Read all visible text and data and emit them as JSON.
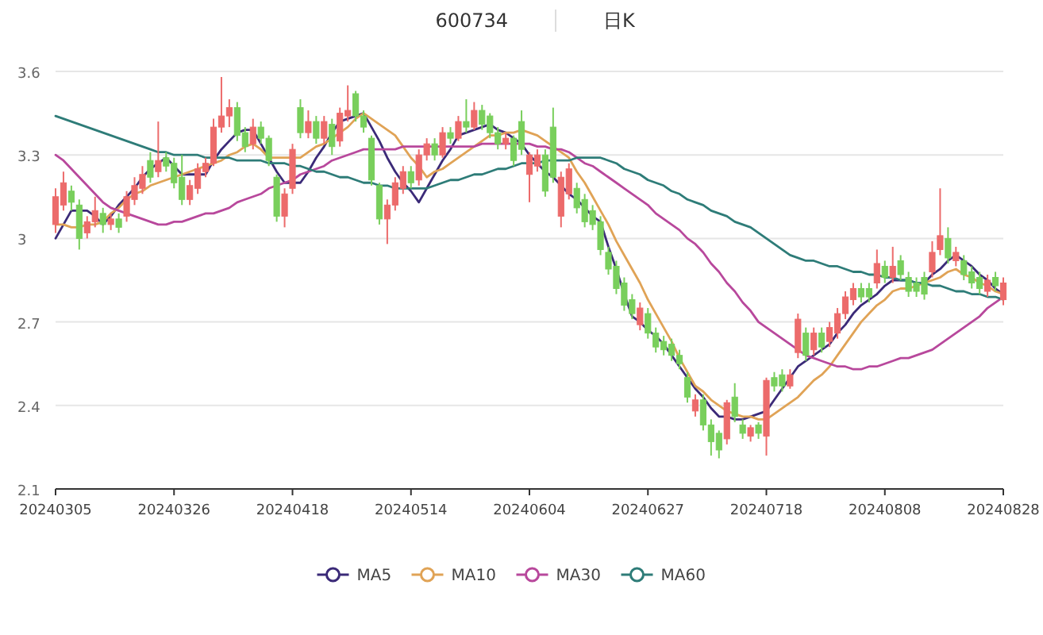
{
  "chart_data": {
    "type": "candlestick",
    "title": "600734",
    "subtitle": "日K",
    "categories": [
      "20240305",
      null,
      null,
      null,
      null,
      null,
      null,
      null,
      null,
      null,
      null,
      null,
      null,
      null,
      null,
      "20240326",
      null,
      null,
      null,
      null,
      null,
      null,
      null,
      null,
      null,
      null,
      null,
      null,
      null,
      null,
      "20240418",
      null,
      null,
      null,
      null,
      null,
      null,
      null,
      null,
      null,
      null,
      null,
      null,
      null,
      null,
      "20240514",
      null,
      null,
      null,
      null,
      null,
      null,
      null,
      null,
      null,
      null,
      null,
      null,
      null,
      null,
      "20240604",
      null,
      null,
      null,
      null,
      null,
      null,
      null,
      null,
      null,
      null,
      null,
      null,
      null,
      null,
      "20240627",
      null,
      null,
      null,
      null,
      null,
      null,
      null,
      null,
      null,
      null,
      null,
      null,
      null,
      null,
      "20240718",
      null,
      null,
      null,
      null,
      null,
      null,
      null,
      null,
      null,
      null,
      null,
      null,
      null,
      null,
      "20240808",
      null,
      null,
      null,
      null,
      null,
      null,
      null,
      null,
      null,
      null,
      null,
      null,
      null,
      null,
      "20240828"
    ],
    "ohlc": [
      [
        3.05,
        3.18,
        3.02,
        3.15
      ],
      [
        3.12,
        3.24,
        3.1,
        3.2
      ],
      [
        3.17,
        3.19,
        3.1,
        3.13
      ],
      [
        3.12,
        3.14,
        2.96,
        3.0
      ],
      [
        3.02,
        3.08,
        3.0,
        3.06
      ],
      [
        3.06,
        3.15,
        3.04,
        3.1
      ],
      [
        3.09,
        3.11,
        3.02,
        3.05
      ],
      [
        3.05,
        3.09,
        3.03,
        3.07
      ],
      [
        3.07,
        3.09,
        3.02,
        3.04
      ],
      [
        3.08,
        3.17,
        3.06,
        3.15
      ],
      [
        3.14,
        3.22,
        3.12,
        3.19
      ],
      [
        3.18,
        3.26,
        3.16,
        3.23
      ],
      [
        3.28,
        3.31,
        3.2,
        3.22
      ],
      [
        3.24,
        3.42,
        3.22,
        3.28
      ],
      [
        3.29,
        3.31,
        3.24,
        3.26
      ],
      [
        3.27,
        3.29,
        3.18,
        3.2
      ],
      [
        3.22,
        3.3,
        3.12,
        3.14
      ],
      [
        3.14,
        3.21,
        3.12,
        3.19
      ],
      [
        3.18,
        3.27,
        3.16,
        3.25
      ],
      [
        3.24,
        3.29,
        3.22,
        3.27
      ],
      [
        3.27,
        3.43,
        3.26,
        3.4
      ],
      [
        3.4,
        3.58,
        3.38,
        3.44
      ],
      [
        3.44,
        3.5,
        3.4,
        3.47
      ],
      [
        3.47,
        3.49,
        3.35,
        3.37
      ],
      [
        3.38,
        3.4,
        3.31,
        3.33
      ],
      [
        3.34,
        3.43,
        3.32,
        3.4
      ],
      [
        3.4,
        3.42,
        3.34,
        3.36
      ],
      [
        3.36,
        3.37,
        3.26,
        3.28
      ],
      [
        3.22,
        3.23,
        3.06,
        3.08
      ],
      [
        3.08,
        3.18,
        3.04,
        3.16
      ],
      [
        3.18,
        3.34,
        3.16,
        3.32
      ],
      [
        3.47,
        3.5,
        3.36,
        3.38
      ],
      [
        3.38,
        3.46,
        3.36,
        3.42
      ],
      [
        3.42,
        3.44,
        3.34,
        3.36
      ],
      [
        3.36,
        3.44,
        3.34,
        3.42
      ],
      [
        3.41,
        3.43,
        3.3,
        3.33
      ],
      [
        3.35,
        3.47,
        3.33,
        3.45
      ],
      [
        3.44,
        3.55,
        3.42,
        3.46
      ],
      [
        3.52,
        3.53,
        3.42,
        3.44
      ],
      [
        3.44,
        3.46,
        3.38,
        3.4
      ],
      [
        3.36,
        3.37,
        3.19,
        3.21
      ],
      [
        3.19,
        3.2,
        3.05,
        3.07
      ],
      [
        3.07,
        3.14,
        2.98,
        3.12
      ],
      [
        3.12,
        3.22,
        3.1,
        3.2
      ],
      [
        3.18,
        3.26,
        3.16,
        3.24
      ],
      [
        3.24,
        3.26,
        3.18,
        3.2
      ],
      [
        3.21,
        3.32,
        3.19,
        3.3
      ],
      [
        3.3,
        3.36,
        3.28,
        3.34
      ],
      [
        3.34,
        3.36,
        3.28,
        3.3
      ],
      [
        3.3,
        3.4,
        3.29,
        3.38
      ],
      [
        3.38,
        3.4,
        3.34,
        3.36
      ],
      [
        3.36,
        3.44,
        3.35,
        3.42
      ],
      [
        3.42,
        3.5,
        3.38,
        3.4
      ],
      [
        3.4,
        3.49,
        3.39,
        3.46
      ],
      [
        3.46,
        3.48,
        3.39,
        3.41
      ],
      [
        3.44,
        3.45,
        3.36,
        3.38
      ],
      [
        3.38,
        3.4,
        3.32,
        3.34
      ],
      [
        3.34,
        3.38,
        3.32,
        3.36
      ],
      [
        3.36,
        3.37,
        3.26,
        3.28
      ],
      [
        3.42,
        3.46,
        3.3,
        3.32
      ],
      [
        3.23,
        3.31,
        3.13,
        3.3
      ],
      [
        3.26,
        3.32,
        3.24,
        3.3
      ],
      [
        3.3,
        3.32,
        3.15,
        3.17
      ],
      [
        3.4,
        3.47,
        3.2,
        3.22
      ],
      [
        3.08,
        3.24,
        3.04,
        3.22
      ],
      [
        3.16,
        3.27,
        3.14,
        3.25
      ],
      [
        3.18,
        3.2,
        3.09,
        3.11
      ],
      [
        3.14,
        3.16,
        3.04,
        3.06
      ],
      [
        3.1,
        3.12,
        3.03,
        3.05
      ],
      [
        3.06,
        3.08,
        2.94,
        2.96
      ],
      [
        2.95,
        2.97,
        2.87,
        2.89
      ],
      [
        2.9,
        2.92,
        2.8,
        2.82
      ],
      [
        2.84,
        2.86,
        2.74,
        2.76
      ],
      [
        2.78,
        2.8,
        2.71,
        2.73
      ],
      [
        2.69,
        2.77,
        2.67,
        2.75
      ],
      [
        2.73,
        2.75,
        2.64,
        2.66
      ],
      [
        2.66,
        2.68,
        2.59,
        2.61
      ],
      [
        2.63,
        2.65,
        2.58,
        2.6
      ],
      [
        2.62,
        2.64,
        2.56,
        2.58
      ],
      [
        2.58,
        2.6,
        2.53,
        2.55
      ],
      [
        2.5,
        2.52,
        2.41,
        2.43
      ],
      [
        2.38,
        2.44,
        2.36,
        2.42
      ],
      [
        2.42,
        2.44,
        2.31,
        2.33
      ],
      [
        2.33,
        2.35,
        2.22,
        2.27
      ],
      [
        2.3,
        2.31,
        2.21,
        2.24
      ],
      [
        2.28,
        2.42,
        2.26,
        2.41
      ],
      [
        2.43,
        2.48,
        2.34,
        2.36
      ],
      [
        2.33,
        2.35,
        2.28,
        2.3
      ],
      [
        2.29,
        2.33,
        2.27,
        2.32
      ],
      [
        2.33,
        2.34,
        2.28,
        2.3
      ],
      [
        2.29,
        2.5,
        2.22,
        2.49
      ],
      [
        2.5,
        2.52,
        2.45,
        2.47
      ],
      [
        2.51,
        2.53,
        2.45,
        2.47
      ],
      [
        2.47,
        2.53,
        2.46,
        2.51
      ],
      [
        2.59,
        2.73,
        2.57,
        2.71
      ],
      [
        2.66,
        2.68,
        2.56,
        2.58
      ],
      [
        2.6,
        2.68,
        2.58,
        2.66
      ],
      [
        2.66,
        2.68,
        2.59,
        2.61
      ],
      [
        2.63,
        2.7,
        2.61,
        2.68
      ],
      [
        2.66,
        2.75,
        2.64,
        2.73
      ],
      [
        2.73,
        2.81,
        2.71,
        2.79
      ],
      [
        2.78,
        2.84,
        2.76,
        2.82
      ],
      [
        2.82,
        2.84,
        2.77,
        2.79
      ],
      [
        2.82,
        2.84,
        2.77,
        2.79
      ],
      [
        2.84,
        2.96,
        2.82,
        2.91
      ],
      [
        2.9,
        2.92,
        2.84,
        2.86
      ],
      [
        2.86,
        2.97,
        2.84,
        2.9
      ],
      [
        2.92,
        2.94,
        2.85,
        2.87
      ],
      [
        2.86,
        2.88,
        2.79,
        2.81
      ],
      [
        2.84,
        2.86,
        2.79,
        2.81
      ],
      [
        2.86,
        2.88,
        2.78,
        2.8
      ],
      [
        2.88,
        2.99,
        2.86,
        2.95
      ],
      [
        2.96,
        3.18,
        2.94,
        3.01
      ],
      [
        3.0,
        3.04,
        2.91,
        2.93
      ],
      [
        2.92,
        2.97,
        2.9,
        2.95
      ],
      [
        2.92,
        2.94,
        2.85,
        2.87
      ],
      [
        2.88,
        2.9,
        2.82,
        2.84
      ],
      [
        2.86,
        2.88,
        2.8,
        2.82
      ],
      [
        2.81,
        2.87,
        2.79,
        2.85
      ],
      [
        2.86,
        2.88,
        2.81,
        2.83
      ],
      [
        2.78,
        2.86,
        2.76,
        2.84
      ]
    ],
    "series": [
      {
        "name": "MA5",
        "type": "line",
        "color": "#3b2a78",
        "values": [
          3.0,
          3.05,
          3.1,
          3.1,
          3.1,
          3.08,
          3.05,
          3.08,
          3.12,
          3.15,
          3.18,
          3.22,
          3.25,
          3.27,
          3.29,
          3.26,
          3.23,
          3.23,
          3.23,
          3.23,
          3.28,
          3.32,
          3.35,
          3.38,
          3.39,
          3.39,
          3.34,
          3.29,
          3.24,
          3.2,
          3.2,
          3.2,
          3.24,
          3.29,
          3.33,
          3.38,
          3.42,
          3.43,
          3.44,
          3.45,
          3.4,
          3.35,
          3.29,
          3.24,
          3.2,
          3.17,
          3.13,
          3.18,
          3.23,
          3.28,
          3.32,
          3.37,
          3.38,
          3.39,
          3.4,
          3.41,
          3.39,
          3.38,
          3.36,
          3.34,
          3.3,
          3.27,
          3.24,
          3.22,
          3.19,
          3.16,
          3.14,
          3.11,
          3.08,
          3.06,
          2.97,
          2.89,
          2.8,
          2.72,
          2.7,
          2.67,
          2.65,
          2.62,
          2.58,
          2.54,
          2.5,
          2.46,
          2.43,
          2.39,
          2.36,
          2.36,
          2.35,
          2.35,
          2.36,
          2.37,
          2.38,
          2.42,
          2.46,
          2.5,
          2.54,
          2.56,
          2.58,
          2.6,
          2.62,
          2.66,
          2.69,
          2.73,
          2.76,
          2.78,
          2.8,
          2.83,
          2.85,
          2.85,
          2.85,
          2.84,
          2.84,
          2.87,
          2.89,
          2.92,
          2.94,
          2.92,
          2.9,
          2.87,
          2.85,
          2.82,
          2.8
        ]
      },
      {
        "name": "MA10",
        "type": "line",
        "color": "#e0a356",
        "values": [
          3.05,
          3.05,
          3.04,
          3.04,
          3.05,
          3.05,
          3.06,
          3.09,
          3.11,
          3.14,
          3.16,
          3.17,
          3.19,
          3.2,
          3.21,
          3.22,
          3.23,
          3.24,
          3.25,
          3.26,
          3.27,
          3.28,
          3.3,
          3.31,
          3.33,
          3.34,
          3.32,
          3.29,
          3.29,
          3.29,
          3.29,
          3.29,
          3.31,
          3.33,
          3.34,
          3.36,
          3.38,
          3.4,
          3.43,
          3.45,
          3.43,
          3.41,
          3.39,
          3.37,
          3.33,
          3.29,
          3.26,
          3.22,
          3.24,
          3.25,
          3.27,
          3.29,
          3.31,
          3.33,
          3.35,
          3.37,
          3.37,
          3.38,
          3.38,
          3.39,
          3.38,
          3.37,
          3.35,
          3.33,
          3.31,
          3.29,
          3.24,
          3.2,
          3.15,
          3.1,
          3.05,
          2.99,
          2.94,
          2.89,
          2.84,
          2.78,
          2.73,
          2.68,
          2.63,
          2.57,
          2.52,
          2.47,
          2.45,
          2.42,
          2.4,
          2.38,
          2.37,
          2.36,
          2.36,
          2.35,
          2.35,
          2.37,
          2.39,
          2.41,
          2.43,
          2.46,
          2.49,
          2.51,
          2.54,
          2.58,
          2.62,
          2.66,
          2.7,
          2.73,
          2.76,
          2.78,
          2.81,
          2.82,
          2.82,
          2.83,
          2.84,
          2.85,
          2.86,
          2.88,
          2.89,
          2.87,
          2.86,
          2.84,
          2.83,
          2.81,
          2.8
        ]
      },
      {
        "name": "MA30",
        "type": "line",
        "color": "#b8489c",
        "values": [
          3.3,
          3.28,
          3.25,
          3.22,
          3.19,
          3.16,
          3.13,
          3.11,
          3.1,
          3.09,
          3.08,
          3.07,
          3.06,
          3.05,
          3.05,
          3.06,
          3.06,
          3.07,
          3.08,
          3.09,
          3.09,
          3.1,
          3.11,
          3.13,
          3.14,
          3.15,
          3.16,
          3.18,
          3.19,
          3.2,
          3.21,
          3.23,
          3.24,
          3.25,
          3.26,
          3.28,
          3.29,
          3.3,
          3.31,
          3.32,
          3.32,
          3.32,
          3.32,
          3.32,
          3.33,
          3.33,
          3.33,
          3.33,
          3.33,
          3.33,
          3.33,
          3.33,
          3.33,
          3.33,
          3.34,
          3.34,
          3.34,
          3.34,
          3.34,
          3.34,
          3.34,
          3.33,
          3.33,
          3.32,
          3.32,
          3.31,
          3.29,
          3.27,
          3.26,
          3.24,
          3.22,
          3.2,
          3.18,
          3.16,
          3.14,
          3.12,
          3.09,
          3.07,
          3.05,
          3.03,
          3.0,
          2.98,
          2.95,
          2.91,
          2.88,
          2.84,
          2.81,
          2.77,
          2.74,
          2.7,
          2.68,
          2.66,
          2.64,
          2.62,
          2.6,
          2.58,
          2.57,
          2.56,
          2.55,
          2.54,
          2.54,
          2.53,
          2.53,
          2.54,
          2.54,
          2.55,
          2.56,
          2.57,
          2.57,
          2.58,
          2.59,
          2.6,
          2.62,
          2.64,
          2.66,
          2.68,
          2.7,
          2.72,
          2.75,
          2.77,
          2.79
        ]
      },
      {
        "name": "MA60",
        "type": "line",
        "color": "#2e7c78",
        "values": [
          3.44,
          3.43,
          3.42,
          3.41,
          3.4,
          3.39,
          3.38,
          3.37,
          3.36,
          3.35,
          3.34,
          3.33,
          3.32,
          3.31,
          3.31,
          3.3,
          3.3,
          3.3,
          3.3,
          3.29,
          3.29,
          3.29,
          3.29,
          3.28,
          3.28,
          3.28,
          3.28,
          3.27,
          3.27,
          3.27,
          3.26,
          3.26,
          3.25,
          3.24,
          3.24,
          3.23,
          3.22,
          3.22,
          3.21,
          3.2,
          3.2,
          3.19,
          3.19,
          3.18,
          3.18,
          3.18,
          3.18,
          3.18,
          3.19,
          3.2,
          3.21,
          3.21,
          3.22,
          3.23,
          3.23,
          3.24,
          3.25,
          3.25,
          3.26,
          3.27,
          3.27,
          3.27,
          3.28,
          3.28,
          3.28,
          3.28,
          3.29,
          3.29,
          3.29,
          3.29,
          3.28,
          3.27,
          3.25,
          3.24,
          3.23,
          3.21,
          3.2,
          3.19,
          3.17,
          3.16,
          3.14,
          3.13,
          3.12,
          3.1,
          3.09,
          3.08,
          3.06,
          3.05,
          3.04,
          3.02,
          3.0,
          2.98,
          2.96,
          2.94,
          2.93,
          2.92,
          2.92,
          2.91,
          2.9,
          2.9,
          2.89,
          2.88,
          2.88,
          2.87,
          2.87,
          2.86,
          2.86,
          2.85,
          2.85,
          2.84,
          2.84,
          2.83,
          2.83,
          2.82,
          2.81,
          2.81,
          2.8,
          2.8,
          2.79,
          2.79,
          2.78
        ]
      }
    ],
    "ylim": [
      2.1,
      3.6
    ],
    "yticks": [
      2.1,
      2.4,
      2.7,
      3,
      3.3,
      3.6
    ],
    "grid": "y",
    "legend": "bottom",
    "marker": "none"
  }
}
